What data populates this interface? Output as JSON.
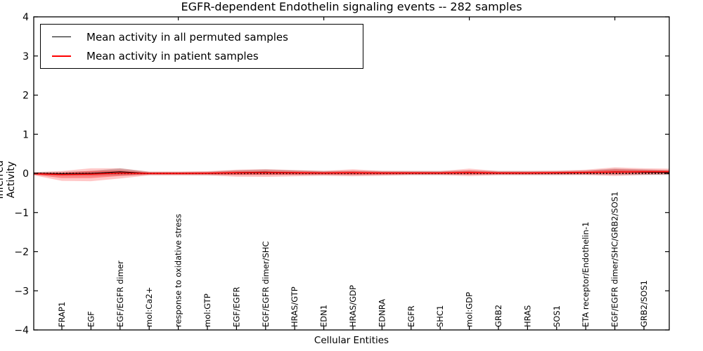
{
  "window": {
    "kind": "matplotlib-style figure",
    "background": "#ffffff"
  },
  "title": "EGFR-dependent Endothelin signaling events -- 282 samples",
  "legend": {
    "entries": [
      {
        "label": "Mean activity in all permuted samples",
        "color": "#000000"
      },
      {
        "label": "Mean activity in patient samples",
        "color": "#ff0000"
      }
    ]
  },
  "chart_data": {
    "type": "area",
    "subtype": "violin-band around mean activity lines",
    "title": "EGFR-dependent Endothelin signaling events -- 282 samples",
    "xlabel": "Cellular Entities",
    "ylabel": "Inferred Activity",
    "ylim": [
      -4,
      4
    ],
    "yticks": [
      4,
      3,
      2,
      1,
      0,
      -1,
      -2,
      -3,
      -4
    ],
    "top_axis_tick_indices": [
      4,
      9,
      14,
      19
    ],
    "grid": false,
    "legend_position": "upper left",
    "zero_line": 0,
    "colors": {
      "patient_band": "#ff0000",
      "permuted_band": "#999999",
      "permuted_mean_line": "#000000",
      "patient_mean_line": "#ff0000",
      "zero_dotted_line": "#000000",
      "axis": "#000000"
    },
    "categories": [
      "FRAP1",
      "EGF",
      "EGF/EGFR dimer",
      "mol:Ca2+",
      "response to oxidative stress",
      "mol:GTP",
      "EGF/EGFR",
      "EGF/EGFR dimer/SHC",
      "HRAS/GTP",
      "EDN1",
      "HRAS/GDP",
      "EDNRA",
      "EGFR",
      "SHC1",
      "mol:GDP",
      "GRB2",
      "HRAS",
      "SOS1",
      "ETA receptor/Endothelin-1",
      "EGF/EGFR dimer/SHC/GRB2/SOS1",
      "GRB2/SOS1"
    ],
    "series": [
      {
        "name": "Mean activity in all permuted samples",
        "color": "#000000",
        "values": [
          -0.01,
          0.0,
          0.04,
          0.0,
          0.0,
          0.0,
          0.02,
          0.03,
          0.02,
          0.01,
          0.01,
          0.01,
          0.01,
          0.01,
          0.02,
          0.01,
          0.01,
          0.01,
          0.02,
          0.04,
          0.03
        ]
      },
      {
        "name": "Mean activity in patient samples",
        "color": "#ff0000",
        "values": [
          -0.03,
          -0.02,
          0.01,
          0.0,
          0.0,
          0.005,
          0.015,
          0.02,
          0.015,
          0.01,
          0.015,
          0.01,
          0.01,
          0.01,
          0.02,
          0.01,
          0.01,
          0.015,
          0.025,
          0.035,
          0.04
        ]
      }
    ],
    "patient_spread_up": [
      0.09,
      0.15,
      0.12,
      0.045,
      0.045,
      0.05,
      0.08,
      0.09,
      0.07,
      0.055,
      0.09,
      0.055,
      0.05,
      0.05,
      0.1,
      0.05,
      0.05,
      0.055,
      0.07,
      0.12,
      0.09
    ],
    "patient_spread_down": [
      0.16,
      0.18,
      0.14,
      0.05,
      0.05,
      0.055,
      0.1,
      0.11,
      0.09,
      0.07,
      0.09,
      0.07,
      0.055,
      0.055,
      0.09,
      0.055,
      0.055,
      0.06,
      0.07,
      0.1,
      0.08
    ],
    "permuted_spread": [
      0.05,
      0.06,
      0.09,
      0.04,
      0.04,
      0.045,
      0.06,
      0.07,
      0.06,
      0.05,
      0.055,
      0.05,
      0.05,
      0.05,
      0.055,
      0.05,
      0.05,
      0.05,
      0.055,
      0.08,
      0.07
    ],
    "edges": {
      "left": {
        "up": 0.04,
        "down": 0.04,
        "permuted_mean": 0.0,
        "patient_mean": -0.01,
        "permuted_spread": 0.035
      },
      "right": {
        "up": 0.08,
        "down": 0.07,
        "permuted_mean": 0.02,
        "patient_mean": 0.04,
        "permuted_spread": 0.06
      }
    }
  }
}
